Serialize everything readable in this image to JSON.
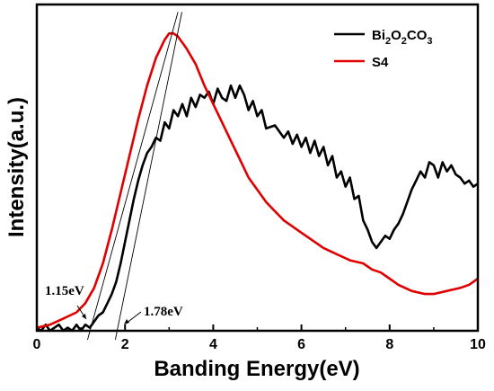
{
  "chart_data": {
    "type": "line",
    "xlabel": "Banding Energy(eV)",
    "ylabel": "Intensity(a.u.)",
    "xlim": [
      0,
      10
    ],
    "ylim": [
      0,
      1
    ],
    "x_ticks": [
      "0",
      "2",
      "4",
      "6",
      "8",
      "10"
    ],
    "grid": false,
    "legend_position": "top-right",
    "series": [
      {
        "name": "Bi2O2CO3",
        "color": "#000000",
        "points": [
          [
            0.0,
            0.01
          ],
          [
            0.1,
            0.0
          ],
          [
            0.2,
            0.02
          ],
          [
            0.3,
            0.0
          ],
          [
            0.4,
            0.01
          ],
          [
            0.5,
            0.02
          ],
          [
            0.6,
            0.0
          ],
          [
            0.7,
            0.01
          ],
          [
            0.8,
            0.0
          ],
          [
            0.9,
            0.02
          ],
          [
            1.0,
            0.0
          ],
          [
            1.1,
            0.02
          ],
          [
            1.2,
            0.01
          ],
          [
            1.3,
            0.03
          ],
          [
            1.4,
            0.05
          ],
          [
            1.5,
            0.06
          ],
          [
            1.6,
            0.09
          ],
          [
            1.7,
            0.12
          ],
          [
            1.8,
            0.16
          ],
          [
            1.9,
            0.22
          ],
          [
            2.0,
            0.29
          ],
          [
            2.1,
            0.36
          ],
          [
            2.2,
            0.43
          ],
          [
            2.3,
            0.49
          ],
          [
            2.4,
            0.54
          ],
          [
            2.5,
            0.58
          ],
          [
            2.6,
            0.6
          ],
          [
            2.7,
            0.63
          ],
          [
            2.8,
            0.62
          ],
          [
            2.9,
            0.68
          ],
          [
            3.0,
            0.66
          ],
          [
            3.1,
            0.72
          ],
          [
            3.2,
            0.7
          ],
          [
            3.3,
            0.74
          ],
          [
            3.4,
            0.7
          ],
          [
            3.5,
            0.76
          ],
          [
            3.6,
            0.73
          ],
          [
            3.7,
            0.77
          ],
          [
            3.8,
            0.76
          ],
          [
            3.9,
            0.78
          ],
          [
            4.0,
            0.74
          ],
          [
            4.1,
            0.79
          ],
          [
            4.2,
            0.76
          ],
          [
            4.3,
            0.75
          ],
          [
            4.4,
            0.8
          ],
          [
            4.5,
            0.76
          ],
          [
            4.6,
            0.8
          ],
          [
            4.7,
            0.77
          ],
          [
            4.8,
            0.72
          ],
          [
            4.9,
            0.75
          ],
          [
            5.0,
            0.7
          ],
          [
            5.1,
            0.72
          ],
          [
            5.2,
            0.66
          ],
          [
            5.4,
            0.67
          ],
          [
            5.6,
            0.63
          ],
          [
            5.7,
            0.65
          ],
          [
            5.8,
            0.61
          ],
          [
            5.9,
            0.64
          ],
          [
            6.0,
            0.6
          ],
          [
            6.1,
            0.63
          ],
          [
            6.2,
            0.58
          ],
          [
            6.3,
            0.62
          ],
          [
            6.4,
            0.57
          ],
          [
            6.5,
            0.6
          ],
          [
            6.6,
            0.54
          ],
          [
            6.7,
            0.57
          ],
          [
            6.8,
            0.5
          ],
          [
            6.9,
            0.52
          ],
          [
            7.0,
            0.47
          ],
          [
            7.1,
            0.5
          ],
          [
            7.2,
            0.43
          ],
          [
            7.3,
            0.44
          ],
          [
            7.4,
            0.36
          ],
          [
            7.5,
            0.33
          ],
          [
            7.6,
            0.29
          ],
          [
            7.7,
            0.27
          ],
          [
            7.8,
            0.29
          ],
          [
            7.9,
            0.31
          ],
          [
            8.0,
            0.3
          ],
          [
            8.1,
            0.33
          ],
          [
            8.2,
            0.35
          ],
          [
            8.3,
            0.38
          ],
          [
            8.4,
            0.42
          ],
          [
            8.5,
            0.46
          ],
          [
            8.6,
            0.49
          ],
          [
            8.7,
            0.52
          ],
          [
            8.8,
            0.5
          ],
          [
            8.9,
            0.55
          ],
          [
            9.0,
            0.54
          ],
          [
            9.1,
            0.5
          ],
          [
            9.2,
            0.55
          ],
          [
            9.3,
            0.52
          ],
          [
            9.4,
            0.54
          ],
          [
            9.5,
            0.51
          ],
          [
            9.6,
            0.5
          ],
          [
            9.7,
            0.48
          ],
          [
            9.8,
            0.49
          ],
          [
            9.9,
            0.47
          ],
          [
            10.0,
            0.48
          ]
        ]
      },
      {
        "name": "S4",
        "color": "#e00000",
        "points": [
          [
            0.0,
            0.01
          ],
          [
            0.3,
            0.02
          ],
          [
            0.6,
            0.04
          ],
          [
            0.9,
            0.06
          ],
          [
            1.1,
            0.09
          ],
          [
            1.3,
            0.14
          ],
          [
            1.5,
            0.22
          ],
          [
            1.7,
            0.33
          ],
          [
            1.9,
            0.45
          ],
          [
            2.1,
            0.57
          ],
          [
            2.3,
            0.69
          ],
          [
            2.5,
            0.8
          ],
          [
            2.7,
            0.89
          ],
          [
            2.9,
            0.95
          ],
          [
            3.0,
            0.97
          ],
          [
            3.1,
            0.97
          ],
          [
            3.2,
            0.96
          ],
          [
            3.4,
            0.92
          ],
          [
            3.6,
            0.87
          ],
          [
            3.8,
            0.8
          ],
          [
            4.0,
            0.74
          ],
          [
            4.2,
            0.68
          ],
          [
            4.4,
            0.62
          ],
          [
            4.6,
            0.56
          ],
          [
            4.8,
            0.5
          ],
          [
            5.0,
            0.46
          ],
          [
            5.2,
            0.42
          ],
          [
            5.4,
            0.39
          ],
          [
            5.6,
            0.36
          ],
          [
            5.8,
            0.34
          ],
          [
            6.0,
            0.32
          ],
          [
            6.2,
            0.3
          ],
          [
            6.5,
            0.27
          ],
          [
            6.8,
            0.25
          ],
          [
            7.1,
            0.23
          ],
          [
            7.4,
            0.22
          ],
          [
            7.6,
            0.2
          ],
          [
            7.8,
            0.19
          ],
          [
            8.0,
            0.17
          ],
          [
            8.2,
            0.15
          ],
          [
            8.5,
            0.13
          ],
          [
            8.8,
            0.12
          ],
          [
            9.0,
            0.12
          ],
          [
            9.3,
            0.13
          ],
          [
            9.6,
            0.14
          ],
          [
            9.8,
            0.15
          ],
          [
            10.0,
            0.17
          ]
        ]
      }
    ],
    "tangent_lines": [
      {
        "x1": 1.15,
        "y1": 0.0,
        "x2": 3.2,
        "y2": 1.04
      },
      {
        "x1": 1.78,
        "y1": 0.0,
        "x2": 3.29,
        "y2": 1.04
      }
    ],
    "annotations": [
      {
        "label": "1.15eV",
        "x": 1.15
      },
      {
        "label": "1.78eV",
        "x": 1.78
      }
    ]
  }
}
